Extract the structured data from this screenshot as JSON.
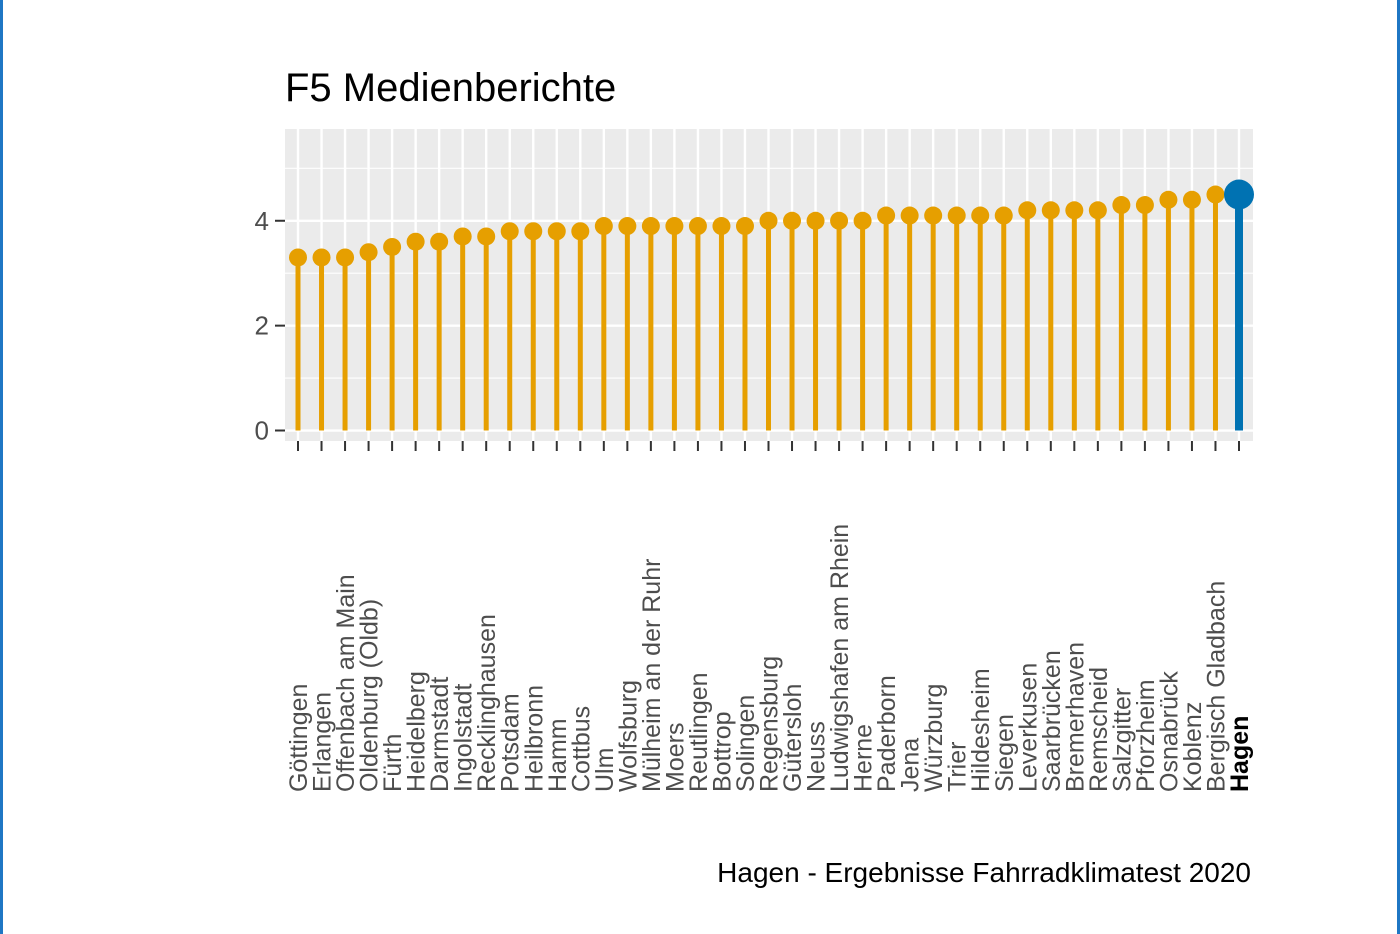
{
  "chart_data": {
    "type": "lollipop",
    "title": "F5 Medienberichte",
    "caption": "Hagen - Ergebnisse Fahrradklimatest 2020",
    "xlabel": "",
    "ylabel": "",
    "ylim": [
      -0.2,
      5.75
    ],
    "yticks": [
      0,
      2,
      4
    ],
    "grid": true,
    "legend": "none",
    "colors": {
      "default": "#e69f00",
      "highlight": "#0072b2",
      "panel": "#ebebeb",
      "grid": "#ffffff"
    },
    "highlight": "Hagen",
    "categories": [
      "Göttingen",
      "Erlangen",
      "Offenbach am Main",
      "Oldenburg (Oldb)",
      "Fürth",
      "Heidelberg",
      "Darmstadt",
      "Ingolstadt",
      "Recklinghausen",
      "Potsdam",
      "Heilbronn",
      "Hamm",
      "Cottbus",
      "Ulm",
      "Wolfsburg",
      "Mülheim an der Ruhr",
      "Moers",
      "Reutlingen",
      "Bottrop",
      "Solingen",
      "Regensburg",
      "Gütersloh",
      "Neuss",
      "Ludwigshafen am Rhein",
      "Herne",
      "Paderborn",
      "Jena",
      "Würzburg",
      "Trier",
      "Hildesheim",
      "Siegen",
      "Leverkusen",
      "Saarbrücken",
      "Bremerhaven",
      "Remscheid",
      "Salzgitter",
      "Pforzheim",
      "Osnabrück",
      "Koblenz",
      "Bergisch Gladbach",
      "Hagen"
    ],
    "values": [
      3.3,
      3.3,
      3.3,
      3.4,
      3.5,
      3.6,
      3.6,
      3.7,
      3.7,
      3.8,
      3.8,
      3.8,
      3.8,
      3.9,
      3.9,
      3.9,
      3.9,
      3.9,
      3.9,
      3.9,
      4.0,
      4.0,
      4.0,
      4.0,
      4.0,
      4.1,
      4.1,
      4.1,
      4.1,
      4.1,
      4.1,
      4.2,
      4.2,
      4.2,
      4.2,
      4.3,
      4.3,
      4.4,
      4.4,
      4.5,
      4.5
    ]
  }
}
